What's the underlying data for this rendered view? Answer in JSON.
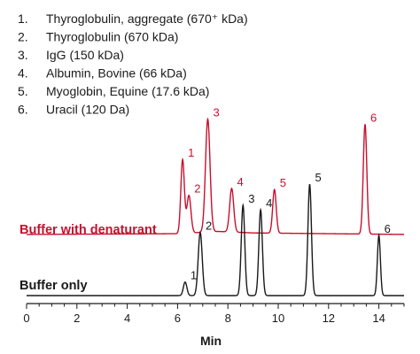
{
  "chart_data": {
    "type": "line",
    "title": "",
    "xlabel": "Min",
    "ylabel": "",
    "xlim": [
      0,
      15
    ],
    "xticks": [
      0,
      2,
      4,
      6,
      8,
      10,
      12,
      14
    ],
    "grid": false,
    "legend": [
      {
        "num": "1.",
        "text": "Thyroglobulin, aggregate (670⁺ kDa)"
      },
      {
        "num": "2.",
        "text": "Thyroglobulin (670 kDa)"
      },
      {
        "num": "3.",
        "text": "IgG (150 kDa)"
      },
      {
        "num": "4.",
        "text": "Albumin, Bovine (66 kDa)"
      },
      {
        "num": "5.",
        "text": "Myoglobin, Equine (17.6 kDa)"
      },
      {
        "num": "6.",
        "text": "Uracil (120 Da)"
      }
    ],
    "series": [
      {
        "name": "Buffer with denaturant",
        "color": "#c8102e",
        "baseline": 0.03,
        "baseline_drift": [
          [
            0,
            0.0
          ],
          [
            6.0,
            0.005
          ],
          [
            7.6,
            0.02
          ],
          [
            9.0,
            0.01
          ],
          [
            12.0,
            0.005
          ],
          [
            15,
            0.0
          ]
        ],
        "peaks": [
          {
            "label": "1",
            "x": 6.2,
            "height": 0.49,
            "width": 0.07
          },
          {
            "label": "2",
            "x": 6.45,
            "height": 0.25,
            "width": 0.08
          },
          {
            "label": "3",
            "x": 7.2,
            "height": 0.75,
            "width": 0.09
          },
          {
            "label": "4",
            "x": 8.15,
            "height": 0.29,
            "width": 0.08
          },
          {
            "label": "5",
            "x": 9.85,
            "height": 0.29,
            "width": 0.07
          },
          {
            "label": "6",
            "x": 13.45,
            "height": 0.73,
            "width": 0.07
          }
        ]
      },
      {
        "name": "Buffer only",
        "color": "#1a1a1a",
        "baseline": 0.0,
        "baseline_drift": [
          [
            0,
            0.0
          ],
          [
            15,
            0.0
          ]
        ],
        "peaks": [
          {
            "label": "1",
            "x": 6.3,
            "height": 0.09,
            "width": 0.07
          },
          {
            "label": "2",
            "x": 6.9,
            "height": 0.42,
            "width": 0.08
          },
          {
            "label": "3",
            "x": 8.6,
            "height": 0.6,
            "width": 0.07
          },
          {
            "label": "4",
            "x": 9.3,
            "height": 0.57,
            "width": 0.07
          },
          {
            "label": "5",
            "x": 11.25,
            "height": 0.74,
            "width": 0.07
          },
          {
            "label": "6",
            "x": 14.0,
            "height": 0.4,
            "width": 0.06
          }
        ]
      }
    ]
  }
}
